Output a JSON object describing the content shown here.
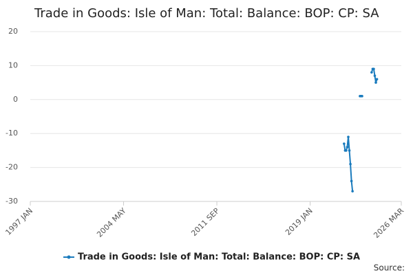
{
  "chart_data": {
    "type": "line",
    "title": "Trade in Goods: Isle of Man: Total: Balance: BOP: CP: SA",
    "x": [
      "2021 SEP",
      "2021 OCT",
      "2021 NOV",
      "2021 DEC",
      "2022 JAN",
      "2022 FEB",
      "2022 MAR",
      "2022 APR",
      "2022 MAY",
      "2022 JUN",
      "2022 JUL",
      "2022 AUG",
      "2022 SEP",
      "2022 OCT",
      "2022 NOV",
      "2022 DEC",
      "2023 JAN",
      "2023 FEB",
      "2023 MAR",
      "2023 APR",
      "2023 MAY",
      "2023 JUN",
      "2023 JUL",
      "2023 AUG",
      "2023 SEP",
      "2023 OCT",
      "2023 NOV",
      "2023 DEC",
      "2024 JAN",
      "2024 FEB",
      "2024 MAR",
      "2024 APR"
    ],
    "series": [
      {
        "name": "Trade in Goods: Isle of Man: Total: Balance: BOP: CP: SA",
        "color": "#1a7bbd",
        "values": [
          -13,
          -15,
          -15,
          -14,
          -11,
          -15,
          -19,
          -24,
          -27,
          null,
          null,
          null,
          null,
          null,
          null,
          1,
          1,
          1,
          null,
          null,
          null,
          null,
          null,
          null,
          null,
          null,
          8,
          9,
          9,
          7,
          5,
          6
        ]
      }
    ],
    "xlim": [
      "1997 JAN",
      "2026 MAR"
    ],
    "xticks": [
      "1997 JAN",
      "2004 MAY",
      "2011 SEP",
      "2019 JAN",
      "2026 MAR"
    ],
    "ylim": [
      -30,
      20
    ],
    "yticks": [
      -30,
      -20,
      -10,
      0,
      10,
      20
    ],
    "grid": true,
    "legend": "bottom",
    "source": "Source:"
  }
}
